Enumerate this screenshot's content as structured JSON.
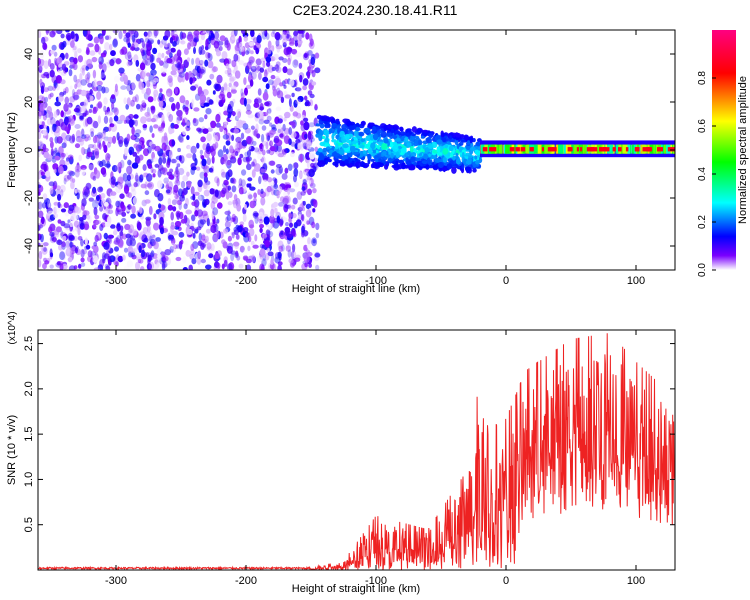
{
  "title": "C2E3.2024.230.18.41.R11",
  "chart_data": [
    {
      "type": "heatmap",
      "title": "C2E3.2024.230.18.41.R11",
      "xlabel": "Height of straight line (km)",
      "ylabel": "Frequency (Hz)",
      "xlim": [
        -360,
        130
      ],
      "ylim": [
        -50,
        50
      ],
      "x_ticks": [
        -300,
        -200,
        -100,
        0,
        100
      ],
      "y_ticks": [
        -40,
        -20,
        0,
        20,
        40
      ],
      "grid": false,
      "colorbar": {
        "label": "Normalized spectral amplitude",
        "range": [
          0,
          1
        ],
        "ticks": [
          0.0,
          0.2,
          0.4,
          0.6,
          0.8
        ],
        "colormap": [
          "#ffffff",
          "#7a00ff",
          "#0000ff",
          "#00ffff",
          "#00ff00",
          "#ffff00",
          "#ff0000",
          "#ff0080"
        ]
      },
      "regions": [
        {
          "x": [
            -360,
            -145
          ],
          "y": [
            -50,
            50
          ],
          "amplitude": [
            0.0,
            0.25
          ],
          "pattern": "noise"
        },
        {
          "x": [
            -145,
            -20
          ],
          "y": [
            -15,
            10
          ],
          "amplitude": [
            0.2,
            0.5
          ],
          "pattern": "band"
        },
        {
          "x": [
            -20,
            130
          ],
          "y": [
            -2,
            3
          ],
          "amplitude": [
            0.4,
            0.9
          ],
          "pattern": "line"
        }
      ]
    },
    {
      "type": "line",
      "xlabel": "Height of straight line (km)",
      "ylabel": "SNR (10 * v/v)",
      "y_multiplier": "(x10^4)",
      "xlim": [
        -360,
        130
      ],
      "ylim": [
        0,
        2.65
      ],
      "x_ticks": [
        -300,
        -200,
        -100,
        0,
        100
      ],
      "y_ticks": [
        0.5,
        1.0,
        1.5,
        2.0,
        2.5
      ],
      "grid": false,
      "line_color": "#ee2222",
      "envelope": [
        {
          "x": -360,
          "y": 0.02
        },
        {
          "x": -150,
          "y": 0.03
        },
        {
          "x": -125,
          "y": 0.1
        },
        {
          "x": -100,
          "y": 0.6
        },
        {
          "x": -60,
          "y": 0.45
        },
        {
          "x": -30,
          "y": 1.1
        },
        {
          "x": -20,
          "y": 2.15
        },
        {
          "x": -5,
          "y": 1.5
        },
        {
          "x": 15,
          "y": 2.2
        },
        {
          "x": 50,
          "y": 2.55
        },
        {
          "x": 80,
          "y": 2.62
        },
        {
          "x": 100,
          "y": 2.3
        },
        {
          "x": 130,
          "y": 1.9
        }
      ]
    }
  ]
}
